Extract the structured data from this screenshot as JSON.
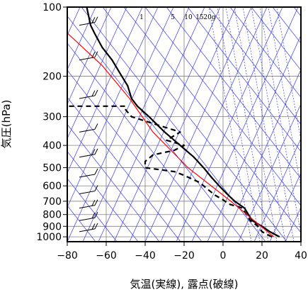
{
  "chart_data": {
    "type": "line",
    "title": "",
    "xlabel": "気温(実線), 露点(破線)",
    "ylabel": "気圧(hPa)",
    "xlim": [
      -80,
      40
    ],
    "ylim": [
      1050,
      100
    ],
    "y_scale": "log",
    "x_ticks": [
      "−80",
      "−60",
      "−40",
      "−20",
      "0",
      "20",
      "40"
    ],
    "y_ticks": [
      "100",
      "200",
      "300",
      "400",
      "500",
      "600",
      "700",
      "800",
      "900",
      "1000"
    ],
    "mixing_ratio_labels": [
      "1",
      "5",
      "10",
      "15",
      "20g"
    ],
    "series": [
      {
        "x": [
          29,
          24,
          20,
          15,
          13,
          11,
          6,
          2,
          -2,
          -6,
          -10,
          -15,
          -22,
          -30,
          -38,
          -44,
          -47,
          -49,
          -52,
          -57,
          -62,
          -66,
          -68,
          -70
        ],
        "y": [
          1000,
          950,
          900,
          850,
          800,
          750,
          700,
          650,
          600,
          550,
          500,
          450,
          400,
          350,
          300,
          270,
          250,
          220,
          200,
          170,
          150,
          130,
          120,
          100
        ],
        "color": "#000000",
        "style": "solid"
      },
      {
        "x": [
          25,
          20,
          18,
          14,
          12,
          10,
          3,
          0,
          -4,
          -8,
          -12,
          -20,
          -25,
          -40,
          -40,
          -36,
          -25,
          -20,
          -29,
          -22,
          -47,
          -50,
          -50,
          -84
        ],
        "y": [
          1000,
          950,
          900,
          850,
          800,
          750,
          720,
          690,
          660,
          620,
          580,
          540,
          520,
          500,
          470,
          440,
          420,
          400,
          380,
          350,
          300,
          280,
          270,
          270
        ],
        "color": "#000000",
        "style": "dashed"
      },
      {
        "x": [
          26,
          4,
          -18,
          -36,
          -48,
          -62,
          -82
        ],
        "y": [
          1000,
          700,
          500,
          350,
          250,
          180,
          125
        ],
        "color": "#ff0000",
        "style": "solid"
      }
    ],
    "wind_barbs": {
      "pressures": [
        950,
        850,
        750,
        650,
        550,
        450,
        350,
        250,
        170,
        120
      ],
      "speeds_kt": [
        20,
        25,
        25,
        15,
        15,
        20,
        15,
        25,
        25,
        20
      ]
    },
    "grid": true,
    "legend": "none"
  },
  "colors": {
    "frame": "#000000",
    "grid": "#808080",
    "isotherm": "#3a3ae8",
    "parcel": "#ff0000"
  }
}
